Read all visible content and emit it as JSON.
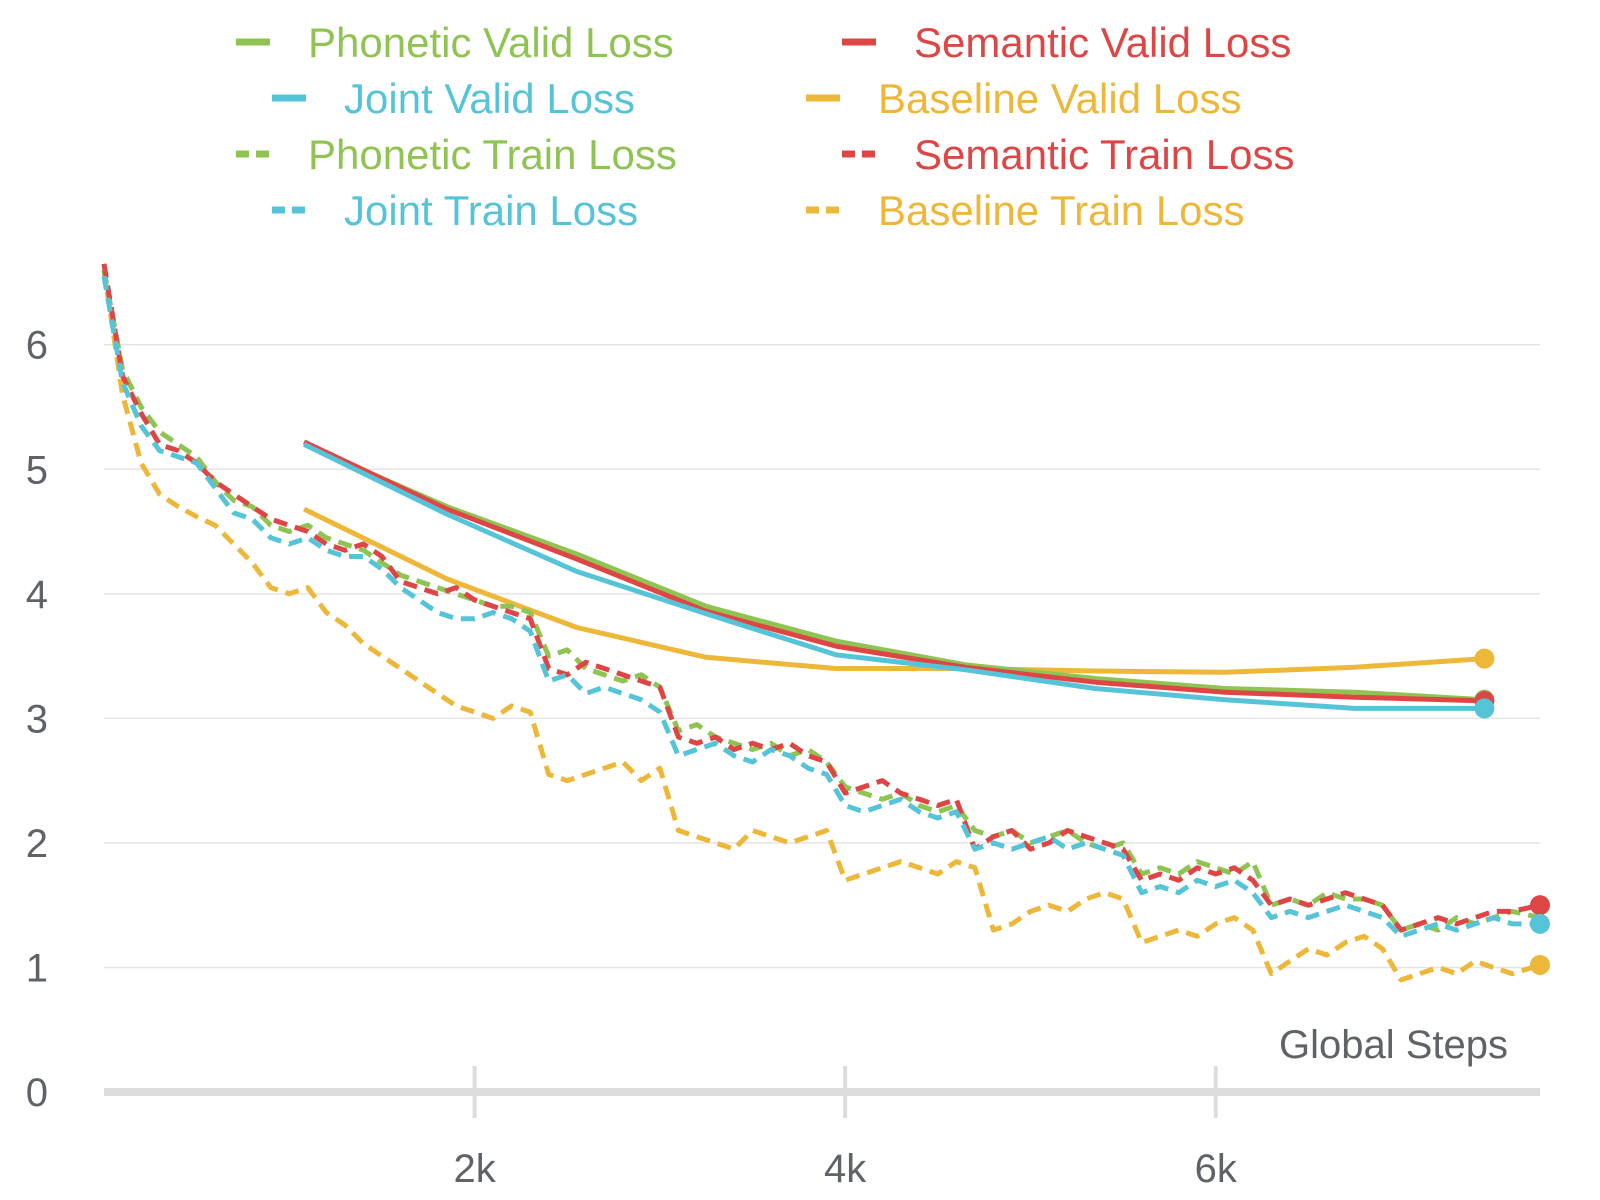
{
  "colors": {
    "phonetic": "#8fc453",
    "semantic": "#de4646",
    "joint": "#56c4d8",
    "baseline": "#edb73a",
    "grid": "#e4e4e4",
    "axis": "#dcdcdc",
    "tick_text": "#5f6368"
  },
  "chart_data": {
    "type": "line",
    "title": "",
    "xlabel": "Global Steps",
    "ylabel": "",
    "xlim": [
      0,
      7750
    ],
    "ylim": [
      0,
      6.6
    ],
    "grid": true,
    "legend_position": "top",
    "x_ticks": [
      {
        "value": 2000,
        "label": "2k"
      },
      {
        "value": 4000,
        "label": "4k"
      },
      {
        "value": 6000,
        "label": "6k"
      }
    ],
    "y_ticks": [
      {
        "value": 0,
        "label": "0"
      },
      {
        "value": 1,
        "label": "1"
      },
      {
        "value": 2,
        "label": "2"
      },
      {
        "value": 3,
        "label": "3"
      },
      {
        "value": 4,
        "label": "4"
      },
      {
        "value": 5,
        "label": "5"
      },
      {
        "value": 6,
        "label": "6"
      }
    ],
    "legend": [
      {
        "label": "Phonetic Valid Loss",
        "color_key": "phonetic",
        "dashed": false
      },
      {
        "label": "Semantic Valid Loss",
        "color_key": "semantic",
        "dashed": false
      },
      {
        "label": "Joint Valid Loss",
        "color_key": "joint",
        "dashed": false
      },
      {
        "label": "Baseline Valid Loss",
        "color_key": "baseline",
        "dashed": false
      },
      {
        "label": "Phonetic Train Loss",
        "color_key": "phonetic",
        "dashed": true
      },
      {
        "label": "Semantic Train Loss",
        "color_key": "semantic",
        "dashed": true
      },
      {
        "label": "Joint Train Loss",
        "color_key": "joint",
        "dashed": true
      },
      {
        "label": "Baseline Train Loss",
        "color_key": "baseline",
        "dashed": true
      }
    ],
    "series": [
      {
        "name": "Baseline Valid Loss",
        "color_key": "baseline",
        "dashed": false,
        "end_marker": true,
        "x": [
          1080,
          1850,
          2550,
          3250,
          3950,
          4650,
          5350,
          6050,
          6750,
          7450
        ],
        "y": [
          4.68,
          4.12,
          3.73,
          3.49,
          3.4,
          3.4,
          3.38,
          3.37,
          3.41,
          3.48
        ]
      },
      {
        "name": "Phonetic Valid Loss",
        "color_key": "phonetic",
        "dashed": false,
        "end_marker": true,
        "x": [
          1080,
          1850,
          2550,
          3250,
          3950,
          4650,
          5350,
          6050,
          6750,
          7450
        ],
        "y": [
          5.2,
          4.7,
          4.32,
          3.9,
          3.62,
          3.43,
          3.32,
          3.24,
          3.21,
          3.15
        ]
      },
      {
        "name": "Semantic Valid Loss",
        "color_key": "semantic",
        "dashed": false,
        "end_marker": true,
        "x": [
          1080,
          1850,
          2550,
          3250,
          3950,
          4650,
          5350,
          6050,
          6750,
          7450
        ],
        "y": [
          5.22,
          4.68,
          4.28,
          3.86,
          3.58,
          3.41,
          3.29,
          3.21,
          3.17,
          3.14
        ]
      },
      {
        "name": "Joint Valid Loss",
        "color_key": "joint",
        "dashed": false,
        "end_marker": true,
        "x": [
          1080,
          1850,
          2550,
          3250,
          3950,
          4650,
          5350,
          6050,
          6750,
          7450
        ],
        "y": [
          5.2,
          4.64,
          4.18,
          3.84,
          3.51,
          3.39,
          3.24,
          3.15,
          3.08,
          3.08
        ]
      },
      {
        "name": "Baseline Train Loss",
        "color_key": "baseline",
        "dashed": true,
        "end_marker": true,
        "x": [
          0,
          100,
          200,
          300,
          400,
          500,
          600,
          700,
          800,
          900,
          1000,
          1100,
          1200,
          1300,
          1400,
          1500,
          1600,
          1700,
          1800,
          1900,
          2000,
          2100,
          2200,
          2300,
          2400,
          2500,
          2600,
          2700,
          2800,
          2900,
          3000,
          3100,
          3200,
          3300,
          3400,
          3500,
          3600,
          3700,
          3800,
          3900,
          4000,
          4100,
          4200,
          4300,
          4400,
          4500,
          4600,
          4700,
          4800,
          4900,
          5000,
          5100,
          5200,
          5300,
          5400,
          5500,
          5600,
          5700,
          5800,
          5900,
          6000,
          6100,
          6200,
          6300,
          6400,
          6500,
          6600,
          6700,
          6800,
          6900,
          7000,
          7100,
          7200,
          7300,
          7400,
          7500,
          7600,
          7750
        ],
        "y": [
          6.6,
          5.6,
          5.05,
          4.8,
          4.7,
          4.62,
          4.55,
          4.4,
          4.25,
          4.05,
          4.0,
          4.05,
          3.85,
          3.75,
          3.6,
          3.5,
          3.4,
          3.3,
          3.2,
          3.1,
          3.05,
          3.0,
          3.1,
          3.05,
          2.55,
          2.5,
          2.55,
          2.6,
          2.65,
          2.5,
          2.6,
          2.1,
          2.05,
          2.0,
          1.95,
          2.1,
          2.05,
          2.0,
          2.05,
          2.1,
          1.7,
          1.75,
          1.8,
          1.85,
          1.8,
          1.75,
          1.85,
          1.8,
          1.3,
          1.35,
          1.45,
          1.5,
          1.45,
          1.55,
          1.6,
          1.55,
          1.2,
          1.25,
          1.3,
          1.25,
          1.35,
          1.4,
          1.3,
          0.95,
          1.05,
          1.15,
          1.1,
          1.2,
          1.25,
          1.15,
          0.9,
          0.95,
          1.0,
          0.95,
          1.05,
          1.0,
          0.95,
          1.02
        ]
      },
      {
        "name": "Phonetic Train Loss",
        "color_key": "phonetic",
        "dashed": true,
        "end_marker": false,
        "x": [
          0,
          100,
          200,
          300,
          400,
          500,
          600,
          700,
          800,
          900,
          1000,
          1100,
          1200,
          1300,
          1400,
          1500,
          1600,
          1700,
          1800,
          1900,
          2000,
          2100,
          2200,
          2300,
          2400,
          2500,
          2600,
          2700,
          2800,
          2900,
          3000,
          3100,
          3200,
          3300,
          3400,
          3500,
          3600,
          3700,
          3800,
          3900,
          4000,
          4100,
          4200,
          4300,
          4400,
          4500,
          4600,
          4700,
          4800,
          4900,
          5000,
          5100,
          5200,
          5300,
          5400,
          5500,
          5600,
          5700,
          5800,
          5900,
          6000,
          6100,
          6200,
          6300,
          6400,
          6500,
          6600,
          6700,
          6800,
          6900,
          7000,
          7100,
          7200,
          7300,
          7400,
          7500,
          7600,
          7750
        ],
        "y": [
          6.6,
          5.8,
          5.5,
          5.3,
          5.2,
          5.1,
          4.9,
          4.75,
          4.7,
          4.55,
          4.5,
          4.55,
          4.45,
          4.4,
          4.35,
          4.25,
          4.15,
          4.1,
          4.05,
          4.0,
          3.95,
          3.9,
          3.9,
          3.85,
          3.5,
          3.55,
          3.4,
          3.35,
          3.3,
          3.35,
          3.25,
          2.9,
          2.95,
          2.85,
          2.8,
          2.75,
          2.8,
          2.7,
          2.75,
          2.65,
          2.45,
          2.4,
          2.35,
          2.4,
          2.3,
          2.25,
          2.3,
          2.1,
          2.05,
          2.1,
          2.0,
          2.05,
          2.1,
          2.0,
          1.95,
          2.0,
          1.75,
          1.8,
          1.75,
          1.85,
          1.8,
          1.75,
          1.85,
          1.5,
          1.55,
          1.5,
          1.6,
          1.55,
          1.55,
          1.5,
          1.3,
          1.35,
          1.3,
          1.4,
          1.35,
          1.4,
          1.45,
          1.4
        ]
      },
      {
        "name": "Semantic Train Loss",
        "color_key": "semantic",
        "dashed": true,
        "end_marker": true,
        "x": [
          0,
          100,
          200,
          300,
          400,
          500,
          600,
          700,
          800,
          900,
          1000,
          1100,
          1200,
          1300,
          1400,
          1500,
          1600,
          1700,
          1800,
          1900,
          2000,
          2100,
          2200,
          2300,
          2400,
          2500,
          2600,
          2700,
          2800,
          2900,
          3000,
          3100,
          3200,
          3300,
          3400,
          3500,
          3600,
          3700,
          3800,
          3900,
          4000,
          4100,
          4200,
          4300,
          4400,
          4500,
          4600,
          4700,
          4800,
          4900,
          5000,
          5100,
          5200,
          5300,
          5400,
          5500,
          5600,
          5700,
          5800,
          5900,
          6000,
          6100,
          6200,
          6300,
          6400,
          6500,
          6600,
          6700,
          6800,
          6900,
          7000,
          7100,
          7200,
          7300,
          7400,
          7500,
          7600,
          7750
        ],
        "y": [
          6.65,
          5.75,
          5.45,
          5.2,
          5.15,
          5.05,
          4.9,
          4.8,
          4.7,
          4.6,
          4.55,
          4.5,
          4.4,
          4.35,
          4.4,
          4.3,
          4.1,
          4.05,
          4.0,
          4.05,
          3.95,
          3.9,
          3.85,
          3.8,
          3.4,
          3.35,
          3.45,
          3.4,
          3.35,
          3.3,
          3.25,
          2.85,
          2.8,
          2.85,
          2.75,
          2.8,
          2.75,
          2.8,
          2.7,
          2.65,
          2.4,
          2.45,
          2.5,
          2.4,
          2.35,
          2.3,
          2.35,
          1.95,
          2.05,
          2.1,
          1.95,
          2.0,
          2.1,
          2.05,
          2.0,
          1.95,
          1.7,
          1.75,
          1.7,
          1.8,
          1.75,
          1.8,
          1.7,
          1.5,
          1.55,
          1.5,
          1.55,
          1.6,
          1.55,
          1.5,
          1.3,
          1.35,
          1.4,
          1.35,
          1.4,
          1.45,
          1.45,
          1.5
        ]
      },
      {
        "name": "Joint Train Loss",
        "color_key": "joint",
        "dashed": true,
        "end_marker": true,
        "x": [
          0,
          100,
          200,
          300,
          400,
          500,
          600,
          700,
          800,
          900,
          1000,
          1100,
          1200,
          1300,
          1400,
          1500,
          1600,
          1700,
          1800,
          1900,
          2000,
          2100,
          2200,
          2300,
          2400,
          2500,
          2600,
          2700,
          2800,
          2900,
          3000,
          3100,
          3200,
          3300,
          3400,
          3500,
          3600,
          3700,
          3800,
          3900,
          4000,
          4100,
          4200,
          4300,
          4400,
          4500,
          4600,
          4700,
          4800,
          4900,
          5000,
          5100,
          5200,
          5300,
          5400,
          5500,
          5600,
          5700,
          5800,
          5900,
          6000,
          6100,
          6200,
          6300,
          6400,
          6500,
          6600,
          6700,
          6800,
          6900,
          7000,
          7100,
          7200,
          7300,
          7400,
          7500,
          7600,
          7750
        ],
        "y": [
          6.55,
          5.7,
          5.35,
          5.15,
          5.1,
          5.05,
          4.85,
          4.65,
          4.6,
          4.45,
          4.4,
          4.45,
          4.35,
          4.3,
          4.3,
          4.2,
          4.05,
          3.95,
          3.85,
          3.8,
          3.8,
          3.85,
          3.8,
          3.7,
          3.3,
          3.35,
          3.2,
          3.25,
          3.2,
          3.15,
          3.05,
          2.7,
          2.75,
          2.8,
          2.7,
          2.65,
          2.75,
          2.7,
          2.6,
          2.55,
          2.3,
          2.25,
          2.3,
          2.35,
          2.25,
          2.2,
          2.25,
          1.95,
          2.0,
          1.95,
          2.0,
          2.05,
          1.95,
          2.0,
          1.95,
          1.9,
          1.6,
          1.65,
          1.6,
          1.7,
          1.65,
          1.7,
          1.6,
          1.4,
          1.45,
          1.4,
          1.45,
          1.5,
          1.45,
          1.4,
          1.25,
          1.3,
          1.35,
          1.3,
          1.35,
          1.4,
          1.35,
          1.35
        ]
      }
    ]
  }
}
